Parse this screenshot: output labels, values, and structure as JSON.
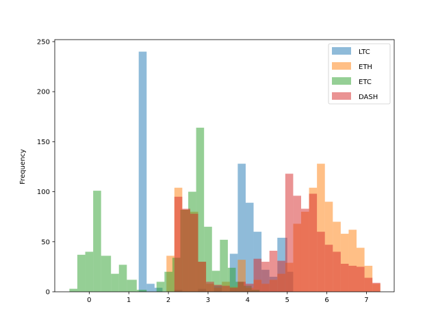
{
  "chart_data": {
    "type": "histogram",
    "ylabel": "Frequency",
    "xlabel": "",
    "xlim": [
      -0.87,
      7.7
    ],
    "ylim": [
      0,
      252
    ],
    "xticks": [
      0,
      1,
      2,
      3,
      4,
      5,
      6,
      7
    ],
    "yticks": [
      0,
      50,
      100,
      150,
      200,
      250
    ],
    "grid": false,
    "legend_position": "top-right",
    "bar_opacity": 0.5,
    "series": [
      {
        "name": "LTC",
        "color": "#1f77b4",
        "bins": [
          [
            1.25,
            1.45,
            240
          ],
          [
            1.45,
            1.65,
            8
          ],
          [
            1.65,
            1.85,
            4
          ],
          [
            2.15,
            2.35,
            2
          ],
          [
            2.75,
            2.95,
            3
          ],
          [
            3.15,
            3.35,
            6
          ],
          [
            3.55,
            3.75,
            38
          ],
          [
            3.75,
            3.95,
            128
          ],
          [
            3.95,
            4.15,
            89
          ],
          [
            4.15,
            4.35,
            60
          ],
          [
            4.35,
            4.55,
            22
          ],
          [
            4.55,
            4.75,
            15
          ],
          [
            4.75,
            5.0,
            54
          ],
          [
            5.0,
            5.15,
            20
          ]
        ]
      },
      {
        "name": "ETH",
        "color": "#ff7f0e",
        "bins": [
          [
            1.95,
            2.15,
            36
          ],
          [
            2.15,
            2.35,
            104
          ],
          [
            2.35,
            2.55,
            82
          ],
          [
            2.55,
            2.75,
            80
          ],
          [
            2.75,
            2.95,
            30
          ],
          [
            2.95,
            3.15,
            8
          ],
          [
            3.15,
            3.35,
            4
          ],
          [
            3.35,
            3.55,
            10
          ],
          [
            3.55,
            3.75,
            5
          ],
          [
            3.75,
            3.95,
            32
          ],
          [
            3.95,
            4.15,
            4
          ],
          [
            4.15,
            4.35,
            12
          ],
          [
            4.35,
            4.55,
            8
          ],
          [
            4.55,
            4.75,
            12
          ],
          [
            4.75,
            4.95,
            18
          ],
          [
            4.95,
            5.15,
            29
          ],
          [
            5.15,
            5.35,
            68
          ],
          [
            5.35,
            5.55,
            80
          ],
          [
            5.55,
            5.75,
            104
          ],
          [
            5.75,
            5.95,
            128
          ],
          [
            5.95,
            6.15,
            90
          ],
          [
            6.15,
            6.35,
            70
          ],
          [
            6.35,
            6.55,
            58
          ],
          [
            6.55,
            6.75,
            62
          ],
          [
            6.75,
            6.95,
            44
          ],
          [
            6.95,
            7.15,
            26
          ],
          [
            7.15,
            7.35,
            8
          ]
        ]
      },
      {
        "name": "ETC",
        "color": "#2ca02c",
        "bins": [
          [
            -0.5,
            -0.3,
            3
          ],
          [
            -0.3,
            -0.1,
            37
          ],
          [
            -0.1,
            0.1,
            40
          ],
          [
            0.1,
            0.3,
            101
          ],
          [
            0.3,
            0.55,
            36
          ],
          [
            0.55,
            0.75,
            18
          ],
          [
            0.75,
            0.95,
            27
          ],
          [
            0.95,
            1.2,
            12
          ],
          [
            1.2,
            1.45,
            2
          ],
          [
            1.7,
            1.9,
            10
          ],
          [
            1.9,
            2.1,
            20
          ],
          [
            2.1,
            2.3,
            34
          ],
          [
            2.3,
            2.5,
            82
          ],
          [
            2.5,
            2.7,
            100
          ],
          [
            2.7,
            2.9,
            164
          ],
          [
            2.9,
            3.1,
            65
          ],
          [
            3.1,
            3.3,
            21
          ],
          [
            3.3,
            3.5,
            52
          ],
          [
            3.5,
            3.7,
            24
          ],
          [
            3.7,
            3.9,
            10
          ],
          [
            3.9,
            4.1,
            6
          ],
          [
            4.1,
            4.3,
            2
          ]
        ]
      },
      {
        "name": "DASH",
        "color": "#d62728",
        "bins": [
          [
            2.15,
            2.35,
            95
          ],
          [
            2.35,
            2.55,
            83
          ],
          [
            2.55,
            2.75,
            78
          ],
          [
            2.75,
            2.95,
            30
          ],
          [
            2.95,
            3.15,
            10
          ],
          [
            3.15,
            3.35,
            7
          ],
          [
            3.35,
            3.55,
            6
          ],
          [
            3.55,
            3.75,
            4
          ],
          [
            3.75,
            3.95,
            10
          ],
          [
            3.95,
            4.15,
            8
          ],
          [
            4.15,
            4.35,
            33
          ],
          [
            4.35,
            4.55,
            30
          ],
          [
            4.55,
            4.75,
            41
          ],
          [
            4.75,
            4.95,
            31
          ],
          [
            4.95,
            5.15,
            118
          ],
          [
            5.15,
            5.35,
            96
          ],
          [
            5.35,
            5.55,
            83
          ],
          [
            5.55,
            5.75,
            98
          ],
          [
            5.75,
            5.95,
            60
          ],
          [
            5.95,
            6.15,
            47
          ],
          [
            6.15,
            6.35,
            40
          ],
          [
            6.35,
            6.55,
            28
          ],
          [
            6.55,
            6.75,
            26
          ],
          [
            6.75,
            6.95,
            25
          ],
          [
            6.95,
            7.15,
            14
          ],
          [
            7.15,
            7.35,
            9
          ]
        ]
      }
    ]
  }
}
